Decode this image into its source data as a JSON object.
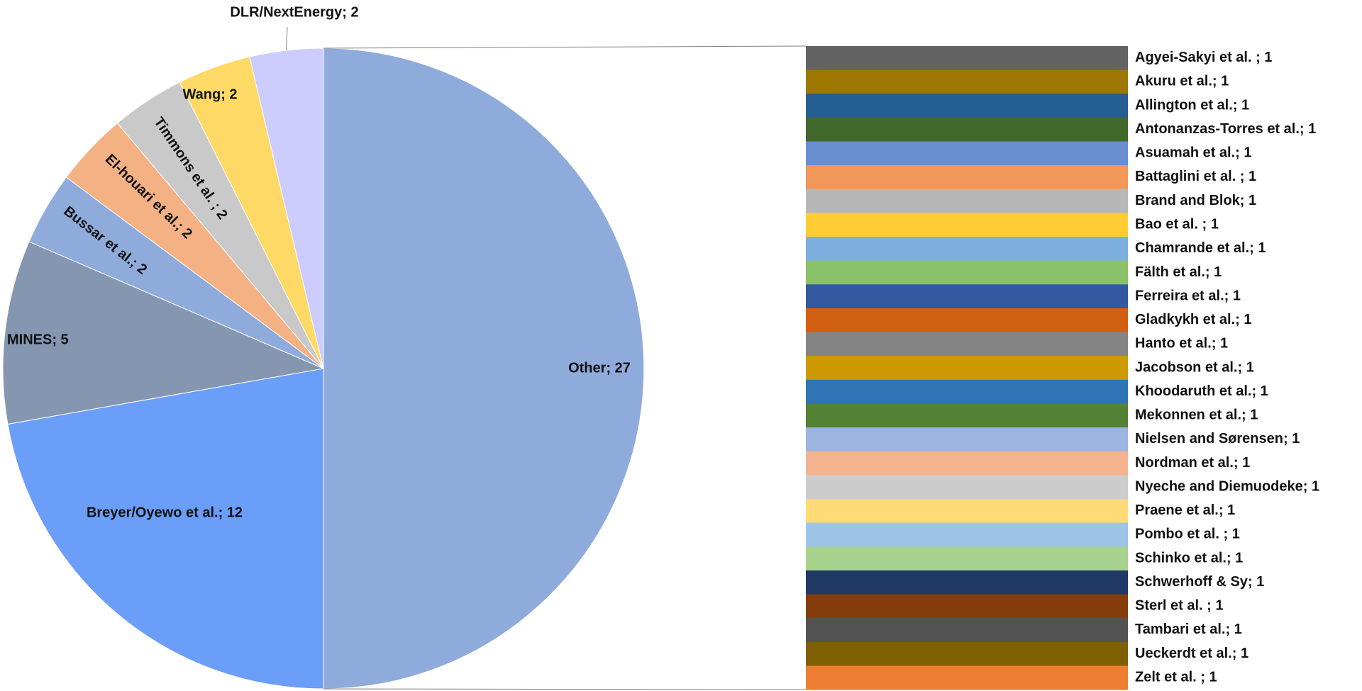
{
  "chart_data": {
    "type": "pie",
    "title": "",
    "pie": {
      "slices": [
        {
          "label": "Other; 27",
          "name": "Other",
          "value": 27,
          "color": "#8FABDC"
        },
        {
          "label": "Breyer/Oyewo et al.; 12",
          "name": "Breyer/Oyewo et al.",
          "value": 12,
          "color": "#6A9EF8"
        },
        {
          "label": "MINES; 5",
          "name": "MINES",
          "value": 5,
          "color": "#8496B0"
        },
        {
          "label": "Bussar et al.; 2",
          "name": "Bussar et al.",
          "value": 2,
          "color": "#8FABDC"
        },
        {
          "label": "El-houari et al.; 2",
          "name": "El-houari et al.",
          "value": 2,
          "color": "#F4B183"
        },
        {
          "label": "Timmons et al. ; 2",
          "name": "Timmons et al.",
          "value": 2,
          "color": "#C9C9C9"
        },
        {
          "label": "Wang; 2",
          "name": "Wang",
          "value": 2,
          "color": "#FFD966"
        },
        {
          "label": "DLR/NextEnergy; 2",
          "name": "DLR/NextEnergy",
          "value": 2,
          "color": "#CCCCFF"
        }
      ]
    },
    "breakdown_bar": {
      "total_label": "Other; 27",
      "segments": [
        {
          "label": "Agyei-Sakyi et al. ; 1",
          "value": 1,
          "color": "#636363"
        },
        {
          "label": "Akuru et al.; 1",
          "value": 1,
          "color": "#9E7700"
        },
        {
          "label": "Allington et al.; 1",
          "value": 1,
          "color": "#255E91"
        },
        {
          "label": "Antonanzas-Torres et al.; 1",
          "value": 1,
          "color": "#43682B"
        },
        {
          "label": "Asuamah et al.; 1",
          "value": 1,
          "color": "#698ED0"
        },
        {
          "label": "Battaglini et al. ; 1",
          "value": 1,
          "color": "#F1975A"
        },
        {
          "label": "Brand and Blok; 1",
          "value": 1,
          "color": "#B7B7B7"
        },
        {
          "label": "Bao et al. ; 1",
          "value": 1,
          "color": "#FFCD33"
        },
        {
          "label": "Chamrande et al.; 1",
          "value": 1,
          "color": "#7CAFDD"
        },
        {
          "label": "Fälth et al.; 1",
          "value": 1,
          "color": "#8BC168"
        },
        {
          "label": "Ferreira et al.; 1",
          "value": 1,
          "color": "#335AA1"
        },
        {
          "label": "Gladkykh et al.; 1",
          "value": 1,
          "color": "#D26012"
        },
        {
          "label": "Hanto et al.; 1",
          "value": 1,
          "color": "#848484"
        },
        {
          "label": "Jacobson et al.; 1",
          "value": 1,
          "color": "#CC9A00"
        },
        {
          "label": "Khoodaruth et al.; 1",
          "value": 1,
          "color": "#2E75B6"
        },
        {
          "label": "Mekonnen et al.; 1",
          "value": 1,
          "color": "#548235"
        },
        {
          "label": "Nielsen and Sørensen; 1",
          "value": 1,
          "color": "#9DB3E0"
        },
        {
          "label": "Nordman et al.; 1",
          "value": 1,
          "color": "#F4B490"
        },
        {
          "label": "Nyeche and Diemuodeke; 1",
          "value": 1,
          "color": "#CCCCCC"
        },
        {
          "label": "Praene et al.; 1",
          "value": 1,
          "color": "#FFDA75"
        },
        {
          "label": "Pombo et al. ; 1",
          "value": 1,
          "color": "#9DC3E6"
        },
        {
          "label": "Schinko et al.; 1",
          "value": 1,
          "color": "#A9D18E"
        },
        {
          "label": "Schwerhoff & Sy; 1",
          "value": 1,
          "color": "#1F3864"
        },
        {
          "label": "Sterl et al. ; 1",
          "value": 1,
          "color": "#843C0C"
        },
        {
          "label": "Tambari et al.; 1",
          "value": 1,
          "color": "#525252"
        },
        {
          "label": "Ueckerdt et al.; 1",
          "value": 1,
          "color": "#7F6000"
        },
        {
          "label": "Zelt et al. ; 1",
          "value": 1,
          "color": "#ED7D31"
        }
      ]
    }
  }
}
